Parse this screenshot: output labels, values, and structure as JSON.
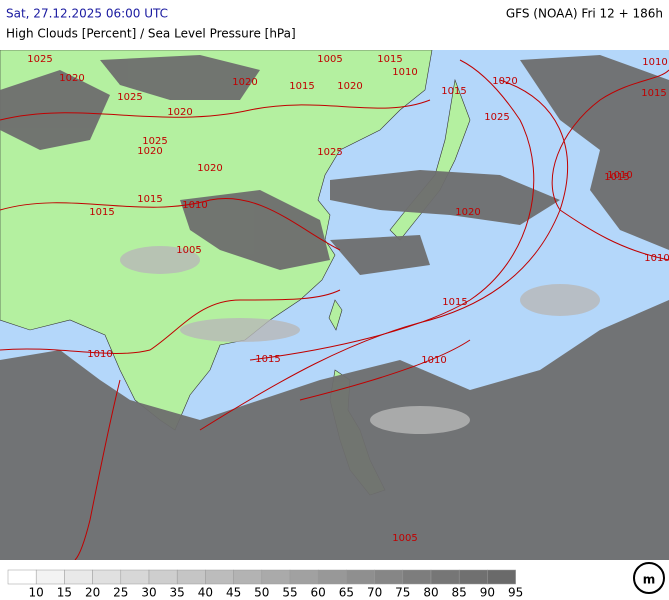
{
  "header": {
    "left": "Sat, 27.12.2025 06:00 UTC",
    "right": "GFS (NOAA) Fri 12 + 186h",
    "subtitle": "High Clouds [Percent] / Sea Level Pressure [hPa]"
  },
  "isobar_labels": [
    1025,
    1020,
    1025,
    1020,
    1005,
    1015,
    1020,
    1010,
    1020,
    1015,
    1020,
    1025,
    1015,
    1025,
    1020,
    1015,
    1010,
    1005,
    1025,
    1020,
    1015,
    1015,
    1010,
    1010,
    1015,
    1010,
    1020,
    1015,
    1010,
    1005,
    1015,
    1010
  ],
  "colorbar": {
    "ticks": [
      10,
      15,
      20,
      25,
      30,
      35,
      40,
      45,
      50,
      55,
      60,
      65,
      70,
      75,
      80,
      85,
      90,
      95
    ],
    "colors": [
      "#ffffff",
      "#f3f3f3",
      "#e9e9e9",
      "#e0e0e0",
      "#d7d7d7",
      "#cecece",
      "#c5c5c5",
      "#bcbcbc",
      "#b3b3b3",
      "#aaaaaa",
      "#a1a1a1",
      "#989898",
      "#8f8f8f",
      "#868686",
      "#7d7d7d",
      "#767676",
      "#707070",
      "#6a6a6a"
    ]
  }
}
